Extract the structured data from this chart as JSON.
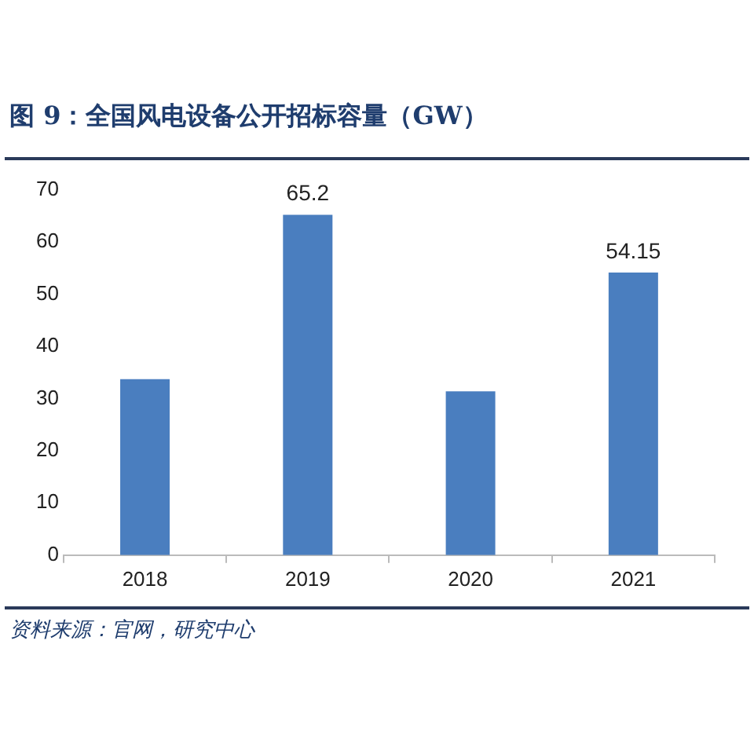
{
  "chart_data": {
    "type": "bar",
    "title": "图 9：全国风电设备公开招标容量（GW）",
    "categories": [
      "2018",
      "2019",
      "2020",
      "2021"
    ],
    "values": [
      33.7,
      65.2,
      31.4,
      54.15
    ],
    "value_labels": [
      null,
      "65.2",
      null,
      "54.15"
    ],
    "color": "#4a7ebf",
    "ylim": [
      0,
      70
    ],
    "yticks": [
      0,
      10,
      20,
      30,
      40,
      50,
      60,
      70
    ],
    "grid": false,
    "annotations": [
      "资料来源：官网，研究中心"
    ]
  }
}
